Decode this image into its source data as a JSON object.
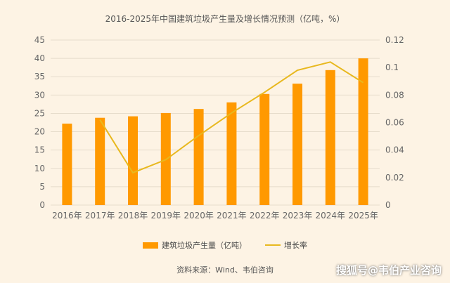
{
  "chart_data": {
    "type": "bar+line",
    "title": "2016-2025年中国建筑垃圾产生量及增长情况预测（亿吨，%）",
    "categories": [
      "2016年",
      "2017年",
      "2018年",
      "2019年",
      "2020年",
      "2021年",
      "2022年",
      "2023年",
      "2024年",
      "2025年"
    ],
    "series": [
      {
        "name": "建筑垃圾产生量（亿吨）",
        "type": "bar",
        "axis": "left",
        "color": "#ff9900",
        "values": [
          22.2,
          23.8,
          24.2,
          25.1,
          26.2,
          28.0,
          30.3,
          33.1,
          36.8,
          40.0
        ]
      },
      {
        "name": "增长率",
        "type": "line",
        "axis": "right",
        "color": "#e8b81e",
        "values": [
          null,
          0.062,
          0.0235,
          0.033,
          0.0505,
          0.067,
          0.082,
          0.098,
          0.104,
          0.089
        ]
      }
    ],
    "y_left": {
      "range": [
        0,
        45
      ],
      "ticks": [
        "0",
        "5",
        "10",
        "15",
        "20",
        "25",
        "30",
        "35",
        "40",
        "45"
      ]
    },
    "y_right": {
      "range": [
        0,
        0.12
      ],
      "ticks": [
        "0",
        "0.02",
        "0.04",
        "0.06",
        "0.08",
        "0.1",
        "0.12"
      ]
    },
    "grid": true,
    "legend": "bottom"
  },
  "source": "资料来源：Wind、韦伯咨询",
  "watermark": "搜狐号@韦伯产业咨询"
}
